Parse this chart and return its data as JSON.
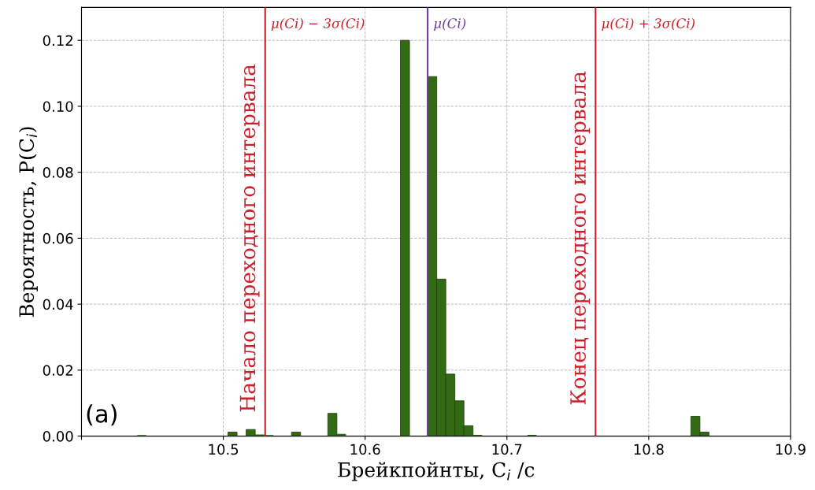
{
  "chart_data": {
    "type": "histogram",
    "xlabel": "Брейкпойнты, C$_{i}$ /c",
    "ylabel": "Вероятность, P(C$_{i}$)",
    "bins": [
      10.4393,
      10.4457,
      10.4521,
      10.4585,
      10.4649,
      10.4713,
      10.4777,
      10.4841,
      10.4905,
      10.4969,
      10.5033,
      10.5097,
      10.5161,
      10.5225,
      10.5289,
      10.5353,
      10.5417,
      10.5481,
      10.5545,
      10.5609,
      10.5673,
      10.5737,
      10.5801,
      10.5865,
      10.5929,
      10.5993,
      10.6057,
      10.6121,
      10.6185,
      10.6249,
      10.6313,
      10.6377,
      10.6441,
      10.6505,
      10.6569,
      10.6633,
      10.6697,
      10.6761,
      10.6825,
      10.6889,
      10.6953,
      10.7017,
      10.7081,
      10.7145,
      10.7209,
      10.7273,
      10.7337,
      10.7401,
      10.7465,
      10.7529,
      10.7593,
      10.7657,
      10.7721,
      10.7785,
      10.7849,
      10.7913,
      10.7977,
      10.8041,
      10.8105,
      10.8169,
      10.8233,
      10.8297,
      10.8361,
      10.8425
    ],
    "values": [
      0.0003,
      0,
      0,
      0,
      0,
      0,
      0,
      0,
      0,
      0,
      0.0012,
      0,
      0.002,
      0.0005,
      0.0003,
      0,
      0,
      0.0012,
      0,
      0,
      0,
      0.0069,
      0.0007,
      0,
      0,
      0,
      0,
      0,
      0,
      0.12,
      0,
      0,
      0.109,
      0.0476,
      0.0188,
      0.0107,
      0.0031,
      0.0004,
      0,
      0,
      0,
      0,
      0,
      0.0004,
      0,
      0,
      0,
      0,
      0,
      0,
      0,
      0,
      0,
      0,
      0,
      0,
      0,
      0,
      0,
      0,
      0,
      0.006,
      0.0012
    ],
    "color": "#336b14",
    "xlim": [
      10.4,
      10.9
    ],
    "xticks": [
      {
        "value": 10.4,
        "label": null
      },
      10.5,
      10.6,
      10.7,
      10.8,
      10.9
    ],
    "ylim": [
      0,
      0.13
    ],
    "yticks": [
      {
        "value": 0,
        "label": "0.00"
      },
      {
        "value": 0.02,
        "label": "0.02"
      },
      {
        "value": 0.04,
        "label": "0.04"
      },
      {
        "value": 0.06,
        "label": "0.06"
      },
      {
        "value": 0.08,
        "label": "0.08"
      },
      {
        "value": 0.1,
        "label": "0.10"
      },
      {
        "value": 0.12,
        "label": "0.12"
      }
    ],
    "grid": true,
    "ref_lines": [
      {
        "axis": "x",
        "value": 10.5295,
        "label": "μ(Ci) − 3σ(Ci)",
        "color": "#cc1f2a"
      },
      {
        "axis": "x",
        "value": 10.6441,
        "label": "μ(Ci)",
        "color": "#6a3d9a"
      },
      {
        "axis": "x",
        "value": 10.7625,
        "label": "μ(Ci) + 3σ(Ci)",
        "color": "#cc1f2a"
      }
    ],
    "annotations": [
      {
        "text": "Начало переходного интервала",
        "x": 10.5295,
        "y": 0.06
      },
      {
        "text": "Конец переходного интервала",
        "x": 10.7625,
        "y": 0.06
      },
      "(a)"
    ]
  }
}
